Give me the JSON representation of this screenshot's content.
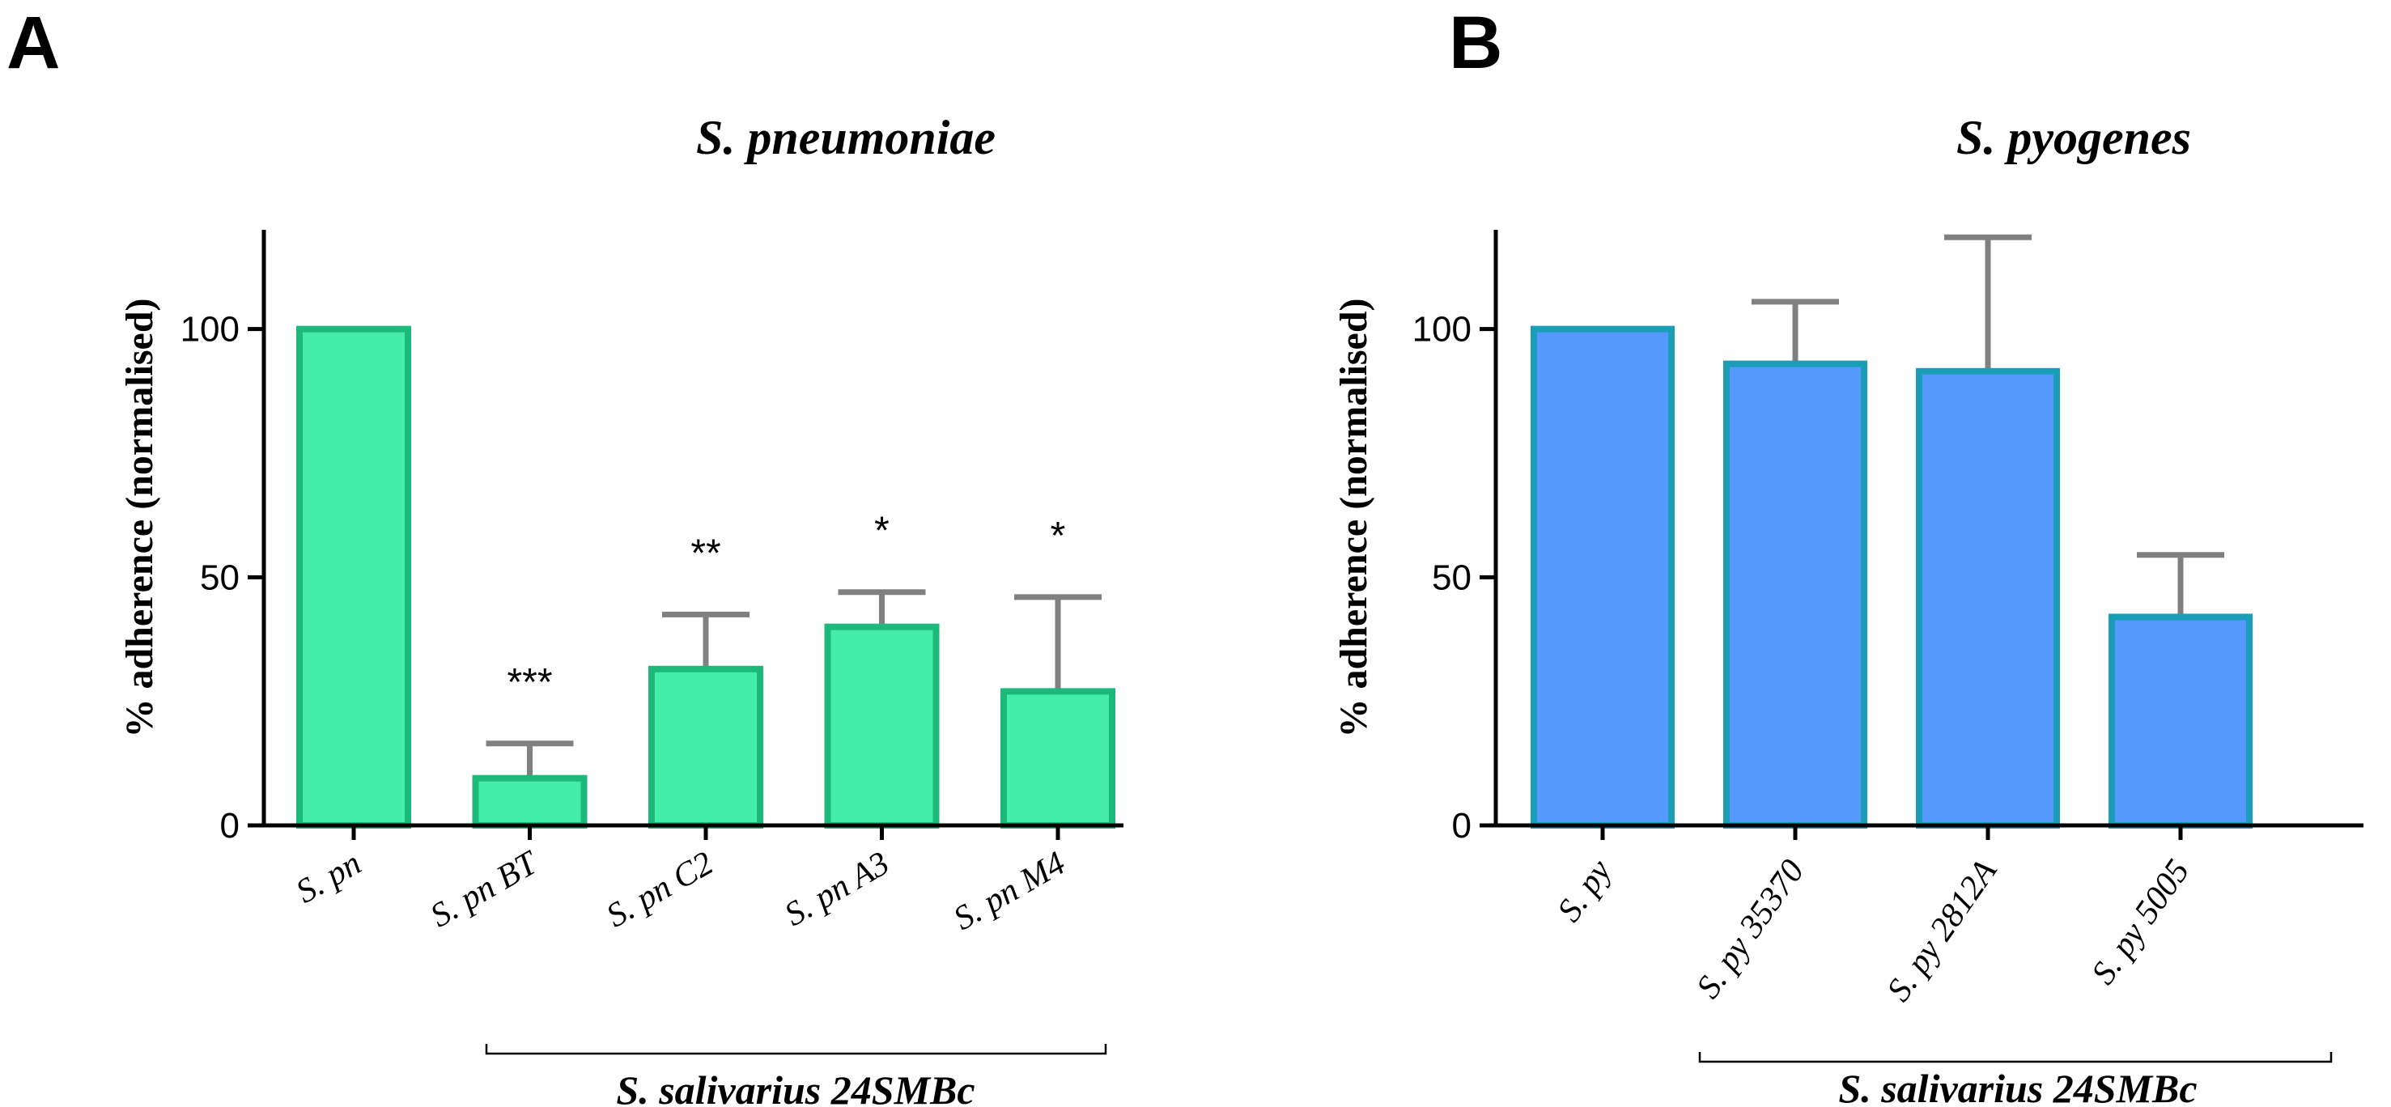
{
  "chart_data": [
    {
      "type": "bar",
      "panel": "A",
      "title": "S. pneumoniae",
      "ylabel": "% adherence (normalised)",
      "xlabel": "",
      "ylim": [
        0,
        120
      ],
      "yticks": [
        0,
        50,
        100
      ],
      "categories": [
        "S. pn",
        "S. pn BT",
        "S. pn C2",
        "S. pn A3",
        "S. pn M4"
      ],
      "values": [
        100,
        9.5,
        31.5,
        40,
        27
      ],
      "error_upper": [
        null,
        16.5,
        42.5,
        47,
        46
      ],
      "significance": [
        "",
        "***",
        "**",
        "*",
        "*"
      ],
      "group_label": "S. salivarius 24SMBc",
      "group_members": [
        "S. pn BT",
        "S. pn C2",
        "S. pn A3",
        "S. pn M4"
      ],
      "colors": {
        "fill": "#44EEAA",
        "stroke": "#1DB97A"
      }
    },
    {
      "type": "bar",
      "panel": "B",
      "title": "S. pyogenes",
      "ylabel": "% adherence (normalised)",
      "xlabel": "",
      "ylim": [
        0,
        120
      ],
      "yticks": [
        0,
        50,
        100
      ],
      "categories": [
        "S. py",
        "S. py 35370",
        "S. py 2812A",
        "S. py 5005"
      ],
      "values": [
        100,
        93,
        91.5,
        42
      ],
      "error_upper": [
        null,
        105.5,
        118.5,
        54.5
      ],
      "significance": [
        "",
        "",
        "",
        ""
      ],
      "group_label": "S. salivarius 24SMBc",
      "group_members": [
        "S. py 35370",
        "S. py 2812A",
        "S. py 5005"
      ],
      "colors": {
        "fill": "#5599FF",
        "stroke": "#1A9EB8"
      }
    }
  ]
}
